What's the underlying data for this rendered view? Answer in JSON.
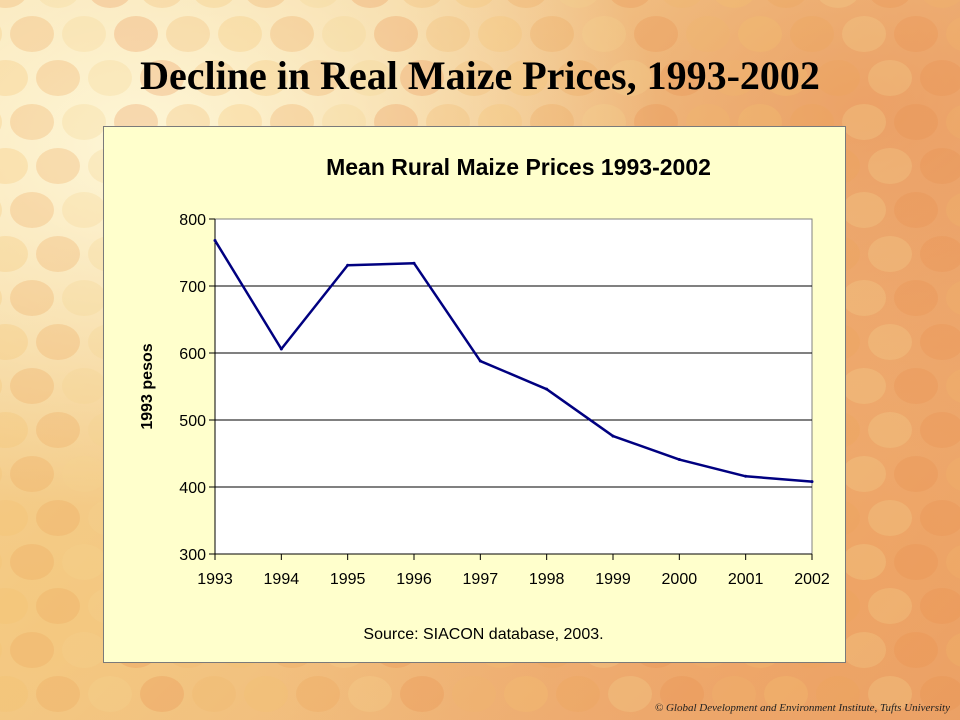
{
  "slide": {
    "title": "Decline in Real Maize Prices, 1993-2002",
    "copyright": "© Global Development and Environment Institute, Tufts University"
  },
  "colors": {
    "panel_bg": "#ffffcc",
    "line": "#000080",
    "grid": "#000000"
  },
  "chart_data": {
    "type": "line",
    "title": "Mean Rural Maize Prices 1993-2002",
    "xlabel": "",
    "ylabel": "1993 pesos",
    "source": "Source: SIACON database, 2003.",
    "categories": [
      "1993",
      "1994",
      "1995",
      "1996",
      "1997",
      "1998",
      "1999",
      "2000",
      "2001",
      "2002"
    ],
    "series": [
      {
        "values": [
          768,
          606,
          731,
          734,
          588,
          546,
          476,
          441,
          416,
          408
        ]
      }
    ],
    "ylim": [
      300,
      800
    ],
    "yticks": [
      "300",
      "400",
      "500",
      "600",
      "700",
      "800"
    ],
    "grid": true,
    "legend": "none"
  }
}
